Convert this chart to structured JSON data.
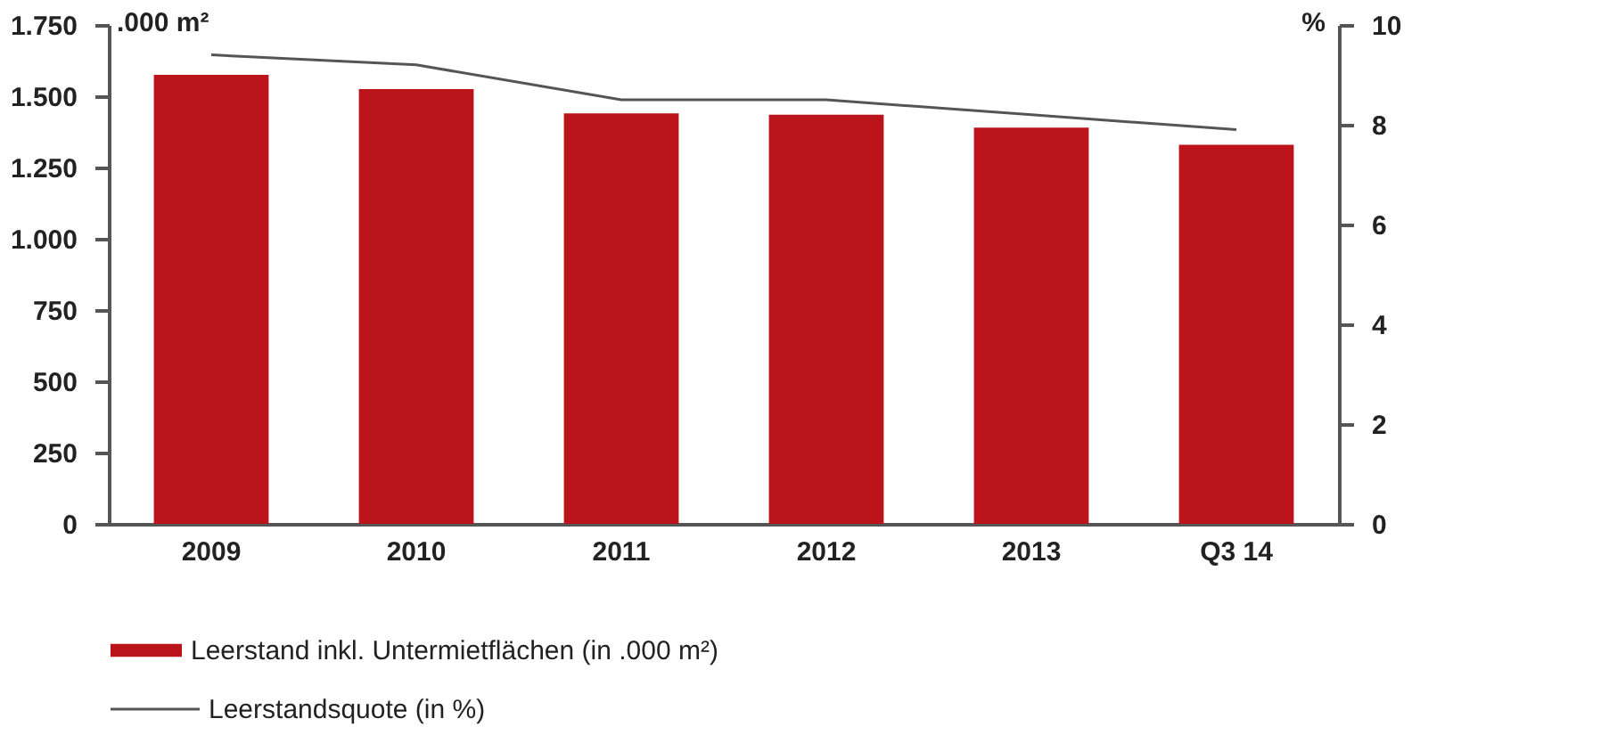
{
  "chart_data": {
    "type": "bar",
    "categories": [
      "2009",
      "2010",
      "2011",
      "2012",
      "2013",
      "Q3 14"
    ],
    "series": [
      {
        "name": "Leerstand inkl. Untermietflächen (in .000 m²)",
        "color": "#bb141a",
        "values": [
          1575,
          1525,
          1440,
          1435,
          1390,
          1330
        ]
      },
      {
        "name": "Leerstandsquote (in %)",
        "type": "line",
        "axis": "y2",
        "color": "#555555",
        "values": [
          9.4,
          9.2,
          8.5,
          8.5,
          8.2,
          7.9
        ]
      }
    ],
    "ylabel": ".000 m²",
    "y2label": "%",
    "ylim": [
      0,
      1750
    ],
    "yticks": [
      {
        "value": 0,
        "label": "0"
      },
      {
        "value": 250,
        "label": "250"
      },
      {
        "value": 500,
        "label": "500"
      },
      {
        "value": 750,
        "label": "750"
      },
      {
        "value": 1000,
        "label": "1.000"
      },
      {
        "value": 1250,
        "label": "1.250"
      },
      {
        "value": 1500,
        "label": "1.500"
      },
      {
        "value": 1750,
        "label": "1.750"
      }
    ],
    "y2lim": [
      0,
      10
    ],
    "y2ticks": [
      0,
      2,
      4,
      6,
      8,
      10
    ],
    "grid": false,
    "legend": "bottom",
    "line_style": "solid",
    "marker": "none"
  }
}
